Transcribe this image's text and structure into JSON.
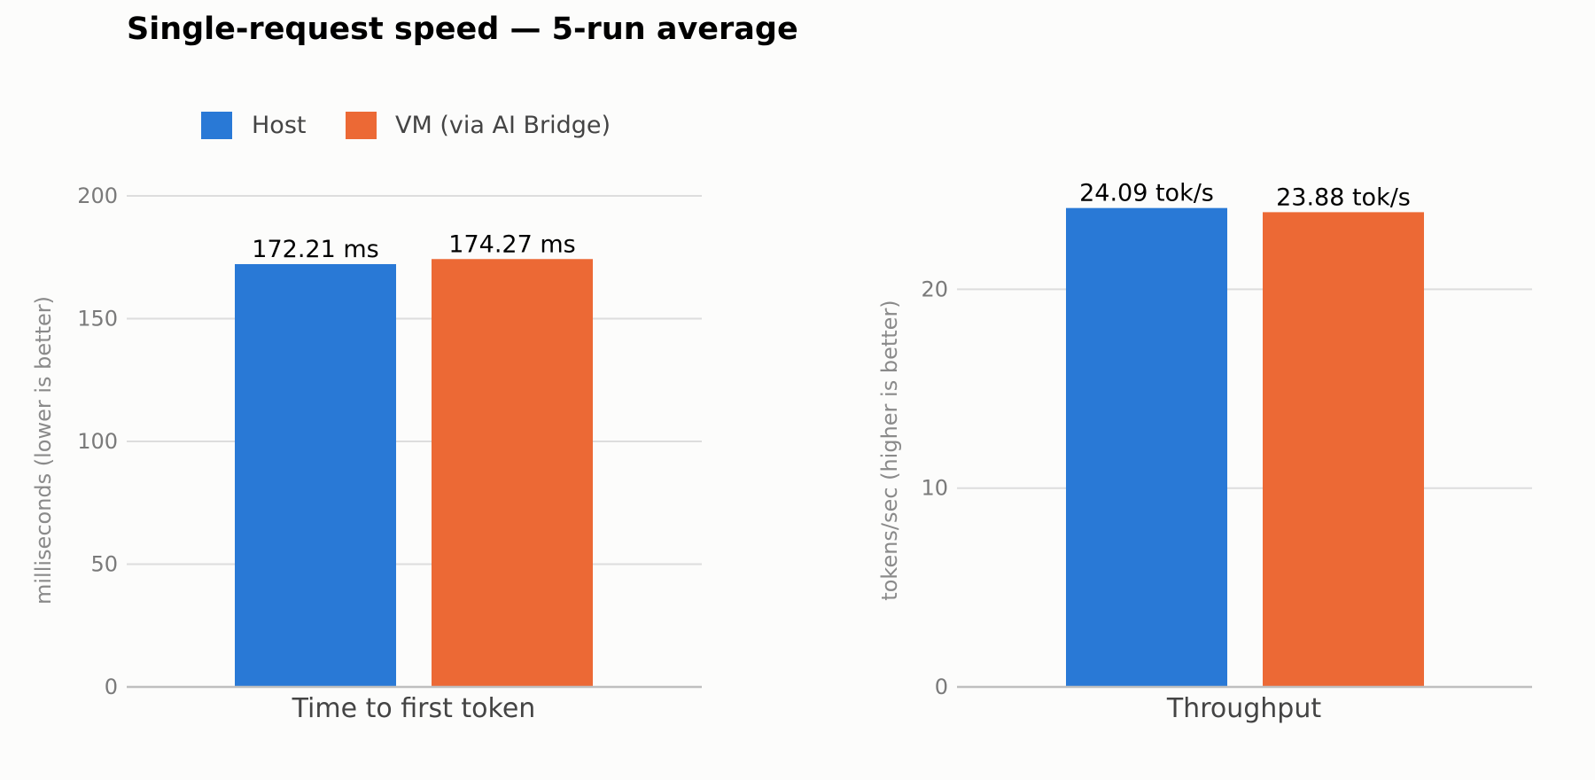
{
  "title": "Single-request speed — 5-run average",
  "legend": [
    {
      "label": "Host",
      "color": "#2979d6"
    },
    {
      "label": "VM (via AI Bridge)",
      "color": "#ec6935"
    }
  ],
  "chart_data": [
    {
      "type": "bar",
      "categories": [
        "Time to first token"
      ],
      "series": [
        {
          "name": "Host",
          "values": [
            172.21
          ],
          "labels": [
            "172.21 ms"
          ],
          "color": "#2979d6"
        },
        {
          "name": "VM (via AI Bridge)",
          "values": [
            174.27
          ],
          "labels": [
            "174.27 ms"
          ],
          "color": "#ec6935"
        }
      ],
      "ylabel": "milliseconds (lower is better)",
      "ylim": [
        0,
        200
      ],
      "yticks": [
        0,
        50,
        100,
        150,
        200
      ],
      "grid": true
    },
    {
      "type": "bar",
      "categories": [
        "Throughput"
      ],
      "series": [
        {
          "name": "Host",
          "values": [
            24.09
          ],
          "labels": [
            "24.09 tok/s"
          ],
          "color": "#2979d6"
        },
        {
          "name": "VM (via AI Bridge)",
          "values": [
            23.88
          ],
          "labels": [
            "23.88 tok/s"
          ],
          "color": "#ec6935"
        }
      ],
      "ylabel": "tokens/sec (higher is better)",
      "ylim": [
        0,
        24.7
      ],
      "yticks": [
        0,
        10,
        20
      ],
      "grid": true
    }
  ]
}
